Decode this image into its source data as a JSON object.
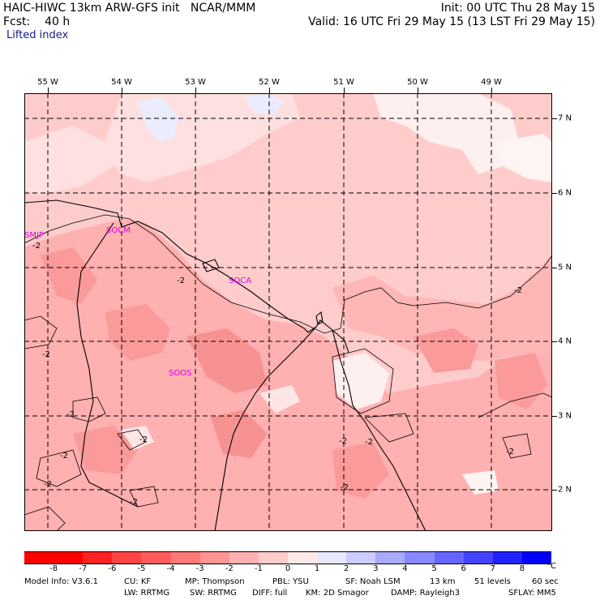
{
  "header": {
    "model_title": "HAIC-HIWC 13km ARW-GFS init",
    "org": "NCAR/MMM",
    "init": "Init: 00 UTC Thu 28 May 15",
    "fcst_label": "Fcst:",
    "fcst_value": "40 h",
    "valid": "Valid: 16 UTC Fri 29 May 15 (13 LST Fri 29 May 15)",
    "field": "Lifted index"
  },
  "map": {
    "lon_labels": [
      "55 W",
      "54 W",
      "53 W",
      "52 W",
      "51 W",
      "50 W",
      "49 W"
    ],
    "lat_labels": [
      "7 N",
      "6 N",
      "5 N",
      "4 N",
      "3 N",
      "2 N"
    ],
    "stations": [
      "SMJP",
      "SOCM",
      "SOCA",
      "SOOS"
    ],
    "contour_label": "-2",
    "colors": {
      "warm_1": "#ffcccc",
      "warm_2": "#ffb0b0",
      "warm_3": "#f78c8c",
      "cool_1": "#e8e8ff",
      "near_zero": "#fff2f2"
    }
  },
  "colorbar": {
    "labels": [
      "-8",
      "-7",
      "-6",
      "-5",
      "-4",
      "-3",
      "-2",
      "-1",
      "0",
      "1",
      "2",
      "3",
      "4",
      "5",
      "6",
      "7",
      "8"
    ],
    "unit": "°C",
    "colors": [
      "#ff0000",
      "#ff2222",
      "#ff4444",
      "#ff5d5d",
      "#ff7878",
      "#ff9494",
      "#ffb0b0",
      "#ffcccc",
      "#ffe8e8",
      "#e8e8ff",
      "#ccccff",
      "#aaaaff",
      "#8888ff",
      "#6666ff",
      "#4444ff",
      "#2222ff",
      "#0000ff"
    ]
  },
  "footer": {
    "line1": [
      "Model Info: V3.6.1",
      "CU: KF",
      "MP: Thompson",
      "PBL: YSU",
      "SF: Noah LSM",
      "13 km",
      "51 levels",
      "60 sec"
    ],
    "line2": [
      "LW: RRTMG",
      "SW: RRTMG",
      "DIFF: full",
      "KM: 2D Smagor",
      "DAMP: Rayleigh3",
      "SFLAY: MM5"
    ]
  }
}
